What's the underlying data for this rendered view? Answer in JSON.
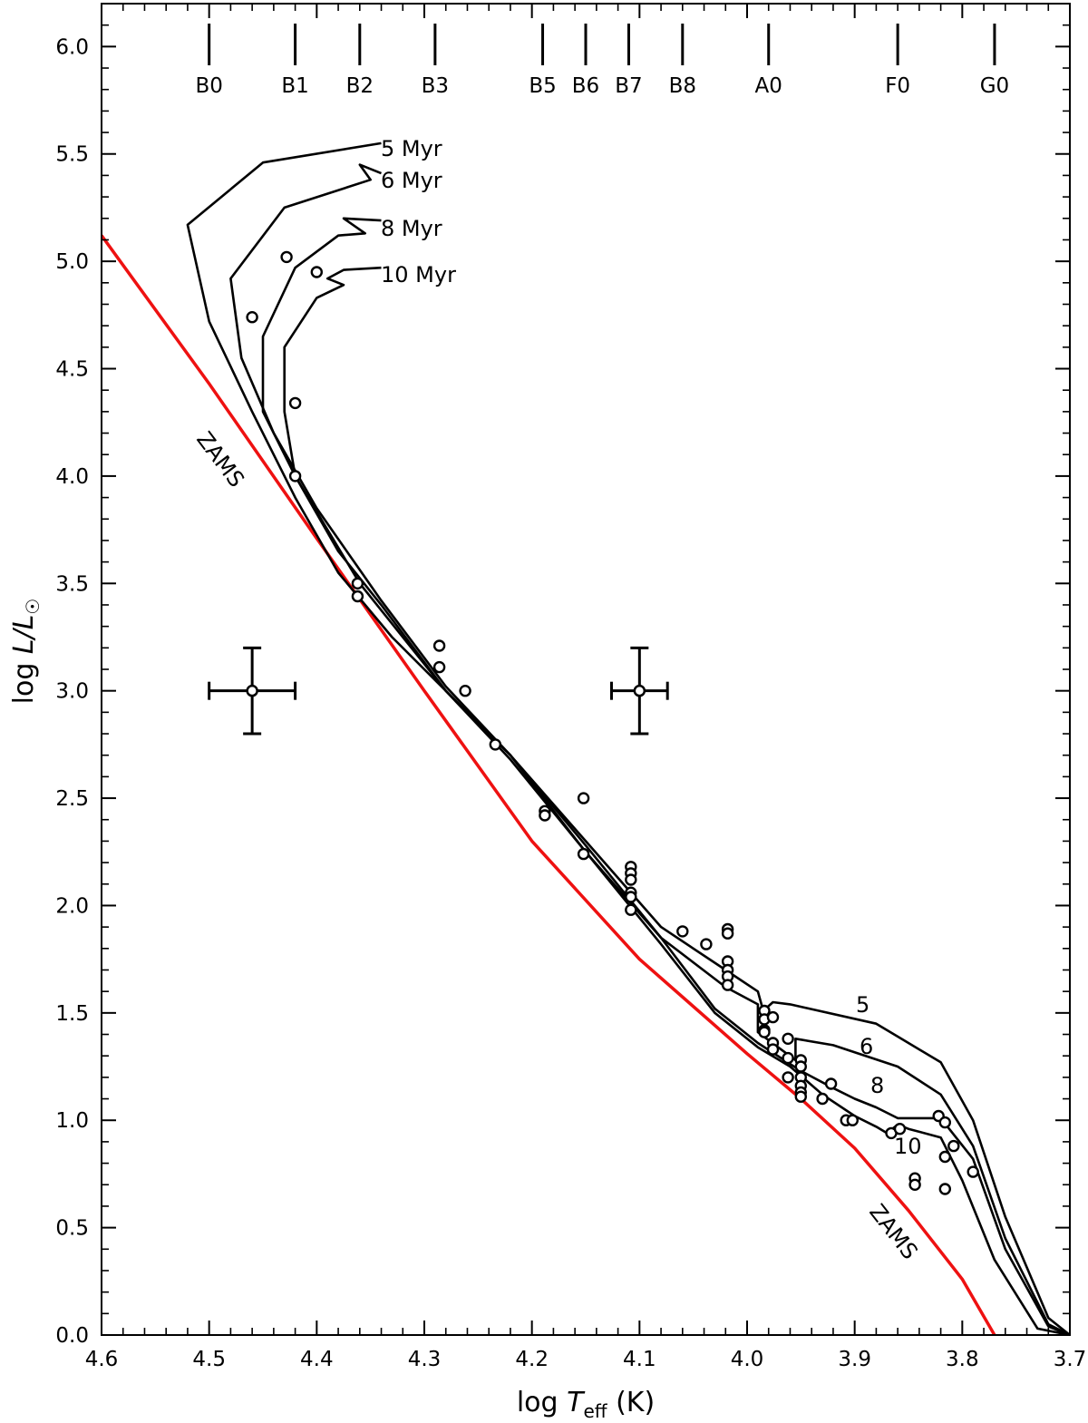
{
  "chart_data": {
    "type": "scatter",
    "title": "",
    "xlabel": {
      "prefix": "log",
      "var": "T",
      "sub": "eff",
      "unit": "(K)"
    },
    "ylabel": {
      "prefix": "log",
      "num": "L",
      "den": "L",
      "sub": "☉"
    },
    "xlim": [
      4.6,
      3.7
    ],
    "ylim": [
      0.0,
      6.2
    ],
    "x_ticks": [
      "4.6",
      "4.5",
      "4.4",
      "4.3",
      "4.2",
      "4.1",
      "4.0",
      "3.9",
      "3.8",
      "3.7"
    ],
    "y_ticks": [
      "0.0",
      "0.5",
      "1.0",
      "1.5",
      "2.0",
      "2.5",
      "3.0",
      "3.5",
      "4.0",
      "4.5",
      "5.0",
      "5.5",
      "6.0"
    ],
    "grid": false,
    "spectral_types": [
      {
        "label": "B0",
        "logT": 4.5
      },
      {
        "label": "B1",
        "logT": 4.42
      },
      {
        "label": "B2",
        "logT": 4.36
      },
      {
        "label": "B3",
        "logT": 4.29
      },
      {
        "label": "B5",
        "logT": 4.19
      },
      {
        "label": "B6",
        "logT": 4.15
      },
      {
        "label": "B7",
        "logT": 4.11
      },
      {
        "label": "B8",
        "logT": 4.06
      },
      {
        "label": "A0",
        "logT": 3.98
      },
      {
        "label": "F0",
        "logT": 3.86
      },
      {
        "label": "G0",
        "logT": 3.77
      }
    ],
    "zams": {
      "label": "ZAMS",
      "color": "#ee1111",
      "points": [
        [
          4.6,
          5.12
        ],
        [
          4.5,
          4.43
        ],
        [
          4.4,
          3.71
        ],
        [
          4.3,
          3.0
        ],
        [
          4.2,
          2.3
        ],
        [
          4.1,
          1.75
        ],
        [
          4.0,
          1.31
        ],
        [
          3.95,
          1.1
        ],
        [
          3.9,
          0.87
        ],
        [
          3.85,
          0.58
        ],
        [
          3.8,
          0.26
        ],
        [
          3.77,
          0.0
        ]
      ]
    },
    "isochrones": [
      {
        "name": "5 Myr",
        "label": "5 Myr",
        "low_label": "5",
        "points": [
          [
            4.34,
            5.55
          ],
          [
            4.45,
            5.46
          ],
          [
            4.52,
            5.17
          ],
          [
            4.5,
            4.72
          ],
          [
            4.46,
            4.3
          ],
          [
            4.42,
            3.9
          ],
          [
            4.38,
            3.55
          ],
          [
            4.33,
            3.25
          ],
          [
            4.28,
            3.0
          ],
          [
            4.22,
            2.7
          ],
          [
            4.15,
            2.3
          ],
          [
            4.08,
            1.9
          ],
          [
            4.02,
            1.7
          ],
          [
            3.99,
            1.6
          ],
          [
            3.985,
            1.51
          ],
          [
            3.976,
            1.55
          ],
          [
            3.96,
            1.54
          ],
          [
            3.88,
            1.45
          ],
          [
            3.82,
            1.27
          ],
          [
            3.79,
            1.0
          ],
          [
            3.76,
            0.55
          ],
          [
            3.72,
            0.08
          ],
          [
            3.7,
            0.0
          ]
        ]
      },
      {
        "name": "6 Myr",
        "label": "6 Myr",
        "low_label": "6",
        "points": [
          [
            4.34,
            5.41
          ],
          [
            4.36,
            5.45
          ],
          [
            4.35,
            5.38
          ],
          [
            4.43,
            5.25
          ],
          [
            4.48,
            4.92
          ],
          [
            4.47,
            4.55
          ],
          [
            4.44,
            4.2
          ],
          [
            4.4,
            3.85
          ],
          [
            4.34,
            3.42
          ],
          [
            4.28,
            3.02
          ],
          [
            4.22,
            2.7
          ],
          [
            4.15,
            2.28
          ],
          [
            4.08,
            1.85
          ],
          [
            4.02,
            1.62
          ],
          [
            3.99,
            1.54
          ],
          [
            3.99,
            1.41
          ],
          [
            3.955,
            1.28
          ],
          [
            3.955,
            1.38
          ],
          [
            3.92,
            1.35
          ],
          [
            3.86,
            1.25
          ],
          [
            3.82,
            1.12
          ],
          [
            3.79,
            0.88
          ],
          [
            3.76,
            0.45
          ],
          [
            3.72,
            0.05
          ],
          [
            3.7,
            0.0
          ]
        ]
      },
      {
        "name": "8 Myr",
        "label": "8 Myr",
        "low_label": "8",
        "points": [
          [
            4.34,
            5.19
          ],
          [
            4.375,
            5.2
          ],
          [
            4.355,
            5.13
          ],
          [
            4.38,
            5.12
          ],
          [
            4.42,
            4.97
          ],
          [
            4.45,
            4.65
          ],
          [
            4.45,
            4.3
          ],
          [
            4.42,
            4.0
          ],
          [
            4.38,
            3.65
          ],
          [
            4.34,
            3.4
          ],
          [
            4.28,
            3.0
          ],
          [
            4.22,
            2.7
          ],
          [
            4.15,
            2.25
          ],
          [
            4.08,
            1.85
          ],
          [
            4.03,
            1.52
          ],
          [
            3.99,
            1.36
          ],
          [
            3.95,
            1.23
          ],
          [
            3.92,
            1.15
          ],
          [
            3.9,
            1.1
          ],
          [
            3.88,
            1.06
          ],
          [
            3.86,
            1.01
          ],
          [
            3.82,
            1.01
          ],
          [
            3.79,
            0.82
          ],
          [
            3.76,
            0.4
          ],
          [
            3.72,
            0.04
          ],
          [
            3.7,
            0.0
          ]
        ]
      },
      {
        "name": "10 Myr",
        "label": "10 Myr",
        "low_label": "10",
        "points": [
          [
            4.34,
            4.97
          ],
          [
            4.375,
            4.96
          ],
          [
            4.39,
            4.92
          ],
          [
            4.375,
            4.89
          ],
          [
            4.4,
            4.83
          ],
          [
            4.43,
            4.6
          ],
          [
            4.43,
            4.3
          ],
          [
            4.42,
            4.0
          ],
          [
            4.36,
            3.5
          ],
          [
            4.28,
            3.0
          ],
          [
            4.22,
            2.68
          ],
          [
            4.15,
            2.25
          ],
          [
            4.08,
            1.82
          ],
          [
            4.03,
            1.5
          ],
          [
            3.99,
            1.34
          ],
          [
            3.96,
            1.25
          ],
          [
            3.93,
            1.12
          ],
          [
            3.9,
            1.02
          ],
          [
            3.88,
            0.97
          ],
          [
            3.87,
            0.94
          ],
          [
            3.86,
            0.98
          ],
          [
            3.85,
            0.96
          ],
          [
            3.82,
            0.92
          ],
          [
            3.8,
            0.72
          ],
          [
            3.77,
            0.35
          ],
          [
            3.73,
            0.03
          ],
          [
            3.7,
            0.0
          ]
        ]
      }
    ],
    "stars": [
      [
        4.428,
        5.02
      ],
      [
        4.4,
        4.95
      ],
      [
        4.46,
        4.74
      ],
      [
        4.42,
        4.34
      ],
      [
        4.42,
        4.0
      ],
      [
        4.362,
        3.5
      ],
      [
        4.362,
        3.44
      ],
      [
        4.286,
        3.21
      ],
      [
        4.286,
        3.11
      ],
      [
        4.262,
        3.0
      ],
      [
        4.234,
        2.75
      ],
      [
        4.188,
        2.44
      ],
      [
        4.188,
        2.42
      ],
      [
        4.152,
        2.5
      ],
      [
        4.152,
        2.24
      ],
      [
        4.108,
        2.18
      ],
      [
        4.108,
        2.15
      ],
      [
        4.108,
        2.12
      ],
      [
        4.108,
        2.06
      ],
      [
        4.108,
        2.04
      ],
      [
        4.108,
        1.98
      ],
      [
        4.06,
        1.88
      ],
      [
        4.038,
        1.82
      ],
      [
        4.018,
        1.89
      ],
      [
        4.018,
        1.87
      ],
      [
        4.018,
        1.74
      ],
      [
        4.018,
        1.7
      ],
      [
        4.018,
        1.67
      ],
      [
        4.018,
        1.63
      ],
      [
        3.984,
        1.51
      ],
      [
        3.984,
        1.47
      ],
      [
        3.984,
        1.42
      ],
      [
        3.984,
        1.41
      ],
      [
        3.976,
        1.48
      ],
      [
        3.976,
        1.36
      ],
      [
        3.976,
        1.33
      ],
      [
        3.962,
        1.38
      ],
      [
        3.962,
        1.29
      ],
      [
        3.962,
        1.2
      ],
      [
        3.95,
        1.28
      ],
      [
        3.95,
        1.25
      ],
      [
        3.95,
        1.2
      ],
      [
        3.95,
        1.16
      ],
      [
        3.95,
        1.13
      ],
      [
        3.95,
        1.11
      ],
      [
        3.922,
        1.17
      ],
      [
        3.93,
        1.1
      ],
      [
        3.908,
        1.0
      ],
      [
        3.902,
        1.0
      ],
      [
        3.866,
        0.94
      ],
      [
        3.858,
        0.96
      ],
      [
        3.822,
        1.02
      ],
      [
        3.816,
        0.99
      ],
      [
        3.808,
        0.88
      ],
      [
        3.816,
        0.83
      ],
      [
        3.79,
        0.76
      ],
      [
        3.844,
        0.73
      ],
      [
        3.844,
        0.7
      ],
      [
        3.816,
        0.68
      ]
    ],
    "error_bars": [
      {
        "x": 4.46,
        "y": 3.0,
        "xerr": 0.04,
        "yerr": 0.2
      },
      {
        "x": 4.1,
        "y": 3.0,
        "xerr": 0.026,
        "yerr": 0.2
      }
    ],
    "colors": {
      "axes": "#000000",
      "isochrone": "#000000",
      "zams": "#ee1111",
      "marker_fill": "#ffffff"
    }
  }
}
